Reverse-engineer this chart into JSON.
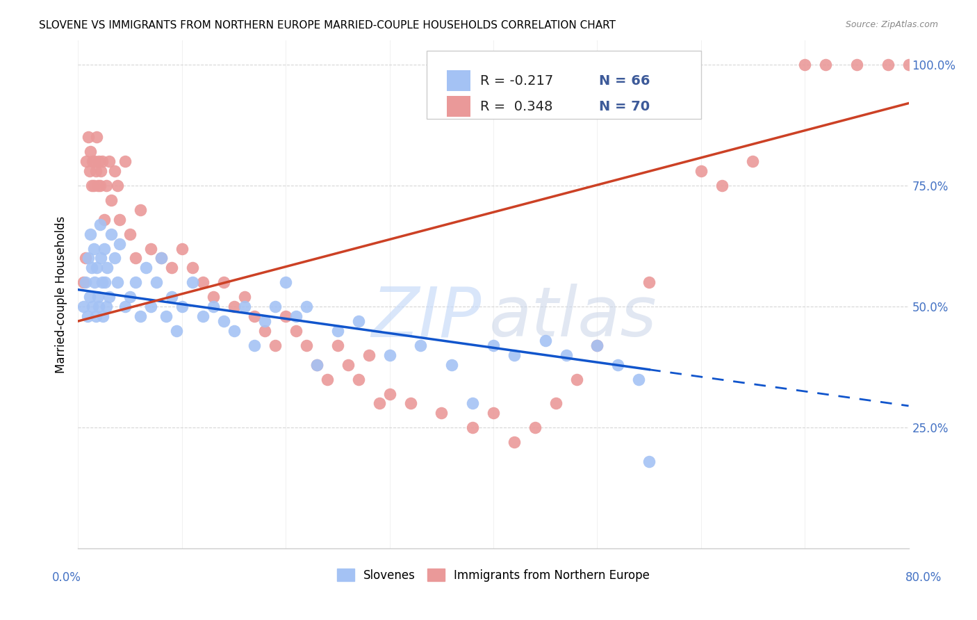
{
  "title": "SLOVENE VS IMMIGRANTS FROM NORTHERN EUROPE MARRIED-COUPLE HOUSEHOLDS CORRELATION CHART",
  "source": "Source: ZipAtlas.com",
  "ylabel": "Married-couple Households",
  "xlim": [
    0.0,
    80.0
  ],
  "ylim": [
    0.0,
    105.0
  ],
  "ytick_vals": [
    25.0,
    50.0,
    75.0,
    100.0
  ],
  "ytick_labels": [
    "25.0%",
    "50.0%",
    "75.0%",
    "100.0%"
  ],
  "legend_label_blue": "Slovenes",
  "legend_label_pink": "Immigrants from Northern Europe",
  "blue_color": "#a4c2f4",
  "pink_color": "#ea9999",
  "blue_line_color": "#1155cc",
  "pink_line_color": "#cc4125",
  "watermark_zip": "ZIP",
  "watermark_atlas": "atlas",
  "title_fontsize": 11,
  "source_fontsize": 9,
  "blue_R": -0.217,
  "pink_R": 0.348,
  "blue_N": 66,
  "pink_N": 70,
  "blue_line_x0": 0.0,
  "blue_line_y0": 53.5,
  "blue_line_x1": 55.0,
  "blue_line_y1": 37.0,
  "blue_dash_x0": 55.0,
  "blue_dash_y0": 37.0,
  "blue_dash_x1": 80.0,
  "blue_dash_y1": 29.5,
  "pink_line_x0": 0.0,
  "pink_line_y0": 47.0,
  "pink_line_x1": 80.0,
  "pink_line_y1": 92.0,
  "blue_x_data": [
    0.5,
    0.7,
    0.9,
    1.0,
    1.1,
    1.2,
    1.3,
    1.4,
    1.5,
    1.6,
    1.7,
    1.8,
    1.9,
    2.0,
    2.1,
    2.2,
    2.3,
    2.4,
    2.5,
    2.6,
    2.7,
    2.8,
    3.0,
    3.2,
    3.5,
    3.8,
    4.0,
    4.5,
    5.0,
    5.5,
    6.0,
    6.5,
    7.0,
    7.5,
    8.0,
    8.5,
    9.0,
    9.5,
    10.0,
    11.0,
    12.0,
    13.0,
    14.0,
    15.0,
    16.0,
    17.0,
    18.0,
    19.0,
    20.0,
    21.0,
    22.0,
    23.0,
    25.0,
    27.0,
    30.0,
    33.0,
    36.0,
    38.0,
    40.0,
    42.0,
    45.0,
    47.0,
    50.0,
    52.0,
    54.0,
    55.0
  ],
  "blue_y_data": [
    50.0,
    55.0,
    48.0,
    60.0,
    52.0,
    65.0,
    58.0,
    50.0,
    62.0,
    55.0,
    48.0,
    58.0,
    52.0,
    50.0,
    67.0,
    60.0,
    55.0,
    48.0,
    62.0,
    55.0,
    50.0,
    58.0,
    52.0,
    65.0,
    60.0,
    55.0,
    63.0,
    50.0,
    52.0,
    55.0,
    48.0,
    58.0,
    50.0,
    55.0,
    60.0,
    48.0,
    52.0,
    45.0,
    50.0,
    55.0,
    48.0,
    50.0,
    47.0,
    45.0,
    50.0,
    42.0,
    47.0,
    50.0,
    55.0,
    48.0,
    50.0,
    38.0,
    45.0,
    47.0,
    40.0,
    42.0,
    38.0,
    30.0,
    42.0,
    40.0,
    43.0,
    40.0,
    42.0,
    38.0,
    35.0,
    18.0
  ],
  "pink_x_data": [
    0.5,
    0.7,
    0.8,
    1.0,
    1.1,
    1.2,
    1.3,
    1.4,
    1.5,
    1.6,
    1.7,
    1.8,
    1.9,
    2.0,
    2.1,
    2.2,
    2.3,
    2.5,
    2.7,
    3.0,
    3.2,
    3.5,
    3.8,
    4.0,
    4.5,
    5.0,
    5.5,
    6.0,
    7.0,
    8.0,
    9.0,
    10.0,
    11.0,
    12.0,
    13.0,
    14.0,
    15.0,
    16.0,
    17.0,
    18.0,
    19.0,
    20.0,
    21.0,
    22.0,
    23.0,
    24.0,
    25.0,
    26.0,
    27.0,
    28.0,
    29.0,
    30.0,
    32.0,
    35.0,
    38.0,
    40.0,
    42.0,
    44.0,
    46.0,
    48.0,
    50.0,
    55.0,
    60.0,
    62.0,
    65.0,
    70.0,
    72.0,
    75.0,
    78.0,
    80.0
  ],
  "pink_y_data": [
    55.0,
    60.0,
    80.0,
    85.0,
    78.0,
    82.0,
    75.0,
    80.0,
    75.0,
    80.0,
    78.0,
    85.0,
    75.0,
    80.0,
    75.0,
    78.0,
    80.0,
    68.0,
    75.0,
    80.0,
    72.0,
    78.0,
    75.0,
    68.0,
    80.0,
    65.0,
    60.0,
    70.0,
    62.0,
    60.0,
    58.0,
    62.0,
    58.0,
    55.0,
    52.0,
    55.0,
    50.0,
    52.0,
    48.0,
    45.0,
    42.0,
    48.0,
    45.0,
    42.0,
    38.0,
    35.0,
    42.0,
    38.0,
    35.0,
    40.0,
    30.0,
    32.0,
    30.0,
    28.0,
    25.0,
    28.0,
    22.0,
    25.0,
    30.0,
    35.0,
    42.0,
    55.0,
    78.0,
    75.0,
    80.0,
    100.0,
    100.0,
    100.0,
    100.0,
    100.0
  ]
}
